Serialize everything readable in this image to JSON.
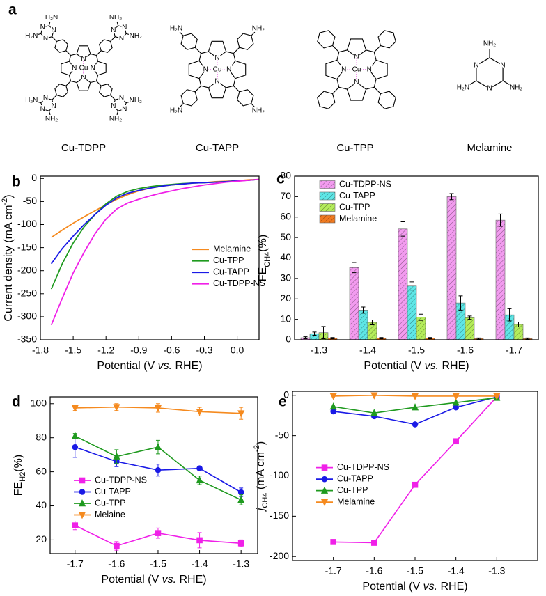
{
  "structures": {
    "panel": "a",
    "atom_color": "#1f1fd0",
    "metal_color": "#e020d8",
    "molecules": [
      {
        "name": "Cu-TDPP",
        "atoms": [
          "N",
          "N",
          "N",
          "N",
          "Cu",
          "N",
          "N",
          "N",
          "NH₂",
          "NH₂",
          "N",
          "N",
          "N",
          "NH₂",
          "H₂N",
          "N",
          "N",
          "N",
          "H₂N",
          "H₂N",
          "N",
          "N",
          "N",
          "NH₂",
          "NH₂"
        ]
      },
      {
        "name": "Cu-TAPP",
        "atoms": [
          "N",
          "N",
          "N",
          "N",
          "Cu",
          "NH₂",
          "H₂N",
          "H₂N",
          "NH₂"
        ]
      },
      {
        "name": "Cu-TPP",
        "atoms": [
          "N",
          "N",
          "N",
          "N",
          "Cu"
        ]
      },
      {
        "name": "Melamine",
        "atoms": [
          "N",
          "N",
          "N",
          "NH₂",
          "NH₂",
          "H₂N"
        ]
      }
    ]
  },
  "chart_data": [
    {
      "type": "line",
      "panel": "b",
      "xlabel": [
        {
          "text": "Potential (V "
        },
        {
          "text": "vs.",
          "italic": true
        },
        {
          "text": " RHE)"
        }
      ],
      "ylabel": [
        {
          "text": "Current density (mA cm"
        },
        {
          "text": "-2",
          "sup": true
        },
        {
          "text": ")"
        }
      ],
      "x": [
        -1.7,
        -1.6,
        -1.5,
        -1.4,
        -1.3,
        -1.2,
        -1.1,
        -1.0,
        -0.9,
        -0.8,
        -0.7,
        -0.6,
        -0.5,
        -0.4,
        -0.3,
        -0.2,
        -0.1,
        0.0,
        0.1,
        0.2
      ],
      "xlim": [
        -1.8,
        0.2
      ],
      "xticks": [
        -1.8,
        -1.5,
        -1.2,
        -0.9,
        -0.6,
        -0.3,
        {
          "value": 0,
          "label": "0.0"
        }
      ],
      "ylim": [
        -350,
        5
      ],
      "yticks": [
        -350,
        -300,
        -250,
        -200,
        -150,
        -100,
        -50,
        0
      ],
      "legend": "center right",
      "series": [
        {
          "name": "Melamine",
          "color": "#f58a1f",
          "values": [
            -128,
            -112,
            -97,
            -83,
            -70,
            -57,
            -45,
            -35,
            -27,
            -21,
            -17,
            -14,
            -12,
            -10,
            -9,
            -7,
            -6,
            -5,
            -3,
            -2
          ]
        },
        {
          "name": "Cu-TPP",
          "color": "#1f9a1f",
          "values": [
            -240,
            -185,
            -140,
            -105,
            -78,
            -55,
            -38,
            -28,
            -22,
            -18,
            -15,
            -13,
            -11,
            -10,
            -9,
            -8,
            -7,
            -5,
            -4,
            -2
          ]
        },
        {
          "name": "Cu-TAPP",
          "color": "#1a1ae6",
          "values": [
            -185,
            -152,
            -125,
            -100,
            -78,
            -58,
            -42,
            -32,
            -26,
            -21,
            -17,
            -14,
            -12,
            -10,
            -9,
            -8,
            -7,
            -5,
            -4,
            -2
          ]
        },
        {
          "name": "Cu-TDPP-NS",
          "color": "#f020e8",
          "values": [
            -318,
            -260,
            -205,
            -160,
            -120,
            -88,
            -66,
            -53,
            -45,
            -38,
            -32,
            -27,
            -22,
            -18,
            -14,
            -11,
            -8,
            -6,
            -4,
            -2
          ]
        }
      ]
    },
    {
      "type": "bar",
      "panel": "c",
      "hatch": true,
      "xlabel": [
        {
          "text": "Potential (V "
        },
        {
          "text": "vs.",
          "italic": true
        },
        {
          "text": " RHE)"
        }
      ],
      "ylabel": [
        {
          "text": "FE"
        },
        {
          "text": "CH4",
          "sub": true
        },
        {
          "text": "(%)"
        }
      ],
      "categories": [
        "-1.3",
        "-1.4",
        "-1.5",
        "-1.6",
        "-1.7"
      ],
      "ylim": [
        0,
        80
      ],
      "yticks": [
        0,
        10,
        20,
        30,
        40,
        50,
        60,
        70,
        80
      ],
      "legend": "upper left",
      "series": [
        {
          "name": "Cu-TDPP-NS",
          "color": "#f29bef",
          "values": [
            1,
            35.3,
            54.2,
            70,
            58.5
          ],
          "errors": [
            0.5,
            2.5,
            3.5,
            1.5,
            3
          ]
        },
        {
          "name": "Cu-TAPP",
          "color": "#5ee6e6",
          "values": [
            3,
            14.5,
            26.3,
            18,
            12.2
          ],
          "errors": [
            0.8,
            1.5,
            2,
            3.5,
            3
          ]
        },
        {
          "name": "Cu-TPP",
          "color": "#b4ec5a",
          "values": [
            3.5,
            8.5,
            11,
            10.8,
            7.5
          ],
          "errors": [
            3,
            1.2,
            1.5,
            0.8,
            1.2
          ]
        },
        {
          "name": "Melamine",
          "color": "#f07a20",
          "values": [
            0.8,
            0.8,
            0.8,
            0.6,
            0.6
          ],
          "errors": [
            0.3,
            0.3,
            0.3,
            0.3,
            0.3
          ]
        }
      ]
    },
    {
      "type": "line",
      "panel": "d",
      "xlabel": [
        {
          "text": "Potential (V "
        },
        {
          "text": "vs.",
          "italic": true
        },
        {
          "text": " RHE)"
        }
      ],
      "ylabel": [
        {
          "text": "FE"
        },
        {
          "text": "H2",
          "sub": true
        },
        {
          "text": "(%)"
        }
      ],
      "x": [
        -1.7,
        -1.6,
        -1.5,
        -1.4,
        -1.3
      ],
      "xlim": [
        -1.76,
        -1.26
      ],
      "xticks": [
        -1.7,
        -1.6,
        -1.5,
        -1.4,
        -1.3
      ],
      "ylim": [
        12,
        104
      ],
      "yticks": [
        20,
        40,
        60,
        80,
        100
      ],
      "legend": "lower left",
      "series": [
        {
          "name": "Cu-TDPP-NS",
          "color": "#f020e8",
          "marker": "square",
          "values": [
            28.5,
            16.5,
            24,
            19.8,
            18
          ],
          "errors": [
            2.5,
            2.5,
            3,
            4.5,
            2
          ]
        },
        {
          "name": "Cu-TAPP",
          "color": "#1a1ae6",
          "marker": "circle",
          "values": [
            74.5,
            66,
            61,
            62,
            48
          ],
          "errors": [
            6,
            3,
            3.5,
            1,
            2.5
          ]
        },
        {
          "name": "Cu-TPP",
          "color": "#1f9a1f",
          "marker": "triangle-up",
          "values": [
            81,
            69,
            74.5,
            55,
            43.5
          ],
          "errors": [
            1.5,
            4,
            4,
            2.5,
            3
          ]
        },
        {
          "name": "Melaine",
          "color": "#f58a1f",
          "marker": "triangle-down",
          "values": [
            97.5,
            98,
            97.5,
            95.3,
            94.3
          ],
          "errors": [
            1.5,
            2,
            2.5,
            2.5,
            3.5
          ]
        }
      ]
    },
    {
      "type": "line",
      "panel": "e",
      "xlabel": [
        {
          "text": "Potential (V "
        },
        {
          "text": "vs.",
          "italic": true
        },
        {
          "text": " RHE)"
        }
      ],
      "ylabel": [
        {
          "text": "j",
          "italic": true
        },
        {
          "text": "CH4",
          "sub": true
        },
        {
          "text": " (mA cm"
        },
        {
          "text": "-2",
          "sup": true
        },
        {
          "text": ")"
        }
      ],
      "x": [
        -1.7,
        -1.6,
        -1.5,
        -1.4,
        -1.3
      ],
      "xlim": [
        -1.8,
        -1.2
      ],
      "xticks": [
        -1.7,
        -1.6,
        -1.5,
        -1.4,
        -1.3
      ],
      "ylim": [
        -205,
        5
      ],
      "yticks": [
        -200,
        -150,
        -100,
        -50,
        0
      ],
      "legend": "center left",
      "series": [
        {
          "name": "Cu-TDPP-NS",
          "color": "#f020e8",
          "marker": "square",
          "values": [
            -182,
            -183,
            -111,
            -57,
            -2
          ]
        },
        {
          "name": "Cu-TAPP",
          "color": "#1a1ae6",
          "marker": "circle",
          "values": [
            -20,
            -26,
            -36,
            -15,
            -2
          ]
        },
        {
          "name": "Cu-TPP",
          "color": "#1f9a1f",
          "marker": "triangle-up",
          "values": [
            -14,
            -22,
            -15,
            -9,
            -3
          ]
        },
        {
          "name": "Melamine",
          "color": "#f58a1f",
          "marker": "triangle-down",
          "values": [
            -1,
            0,
            -1,
            -1,
            -1
          ]
        }
      ]
    }
  ]
}
